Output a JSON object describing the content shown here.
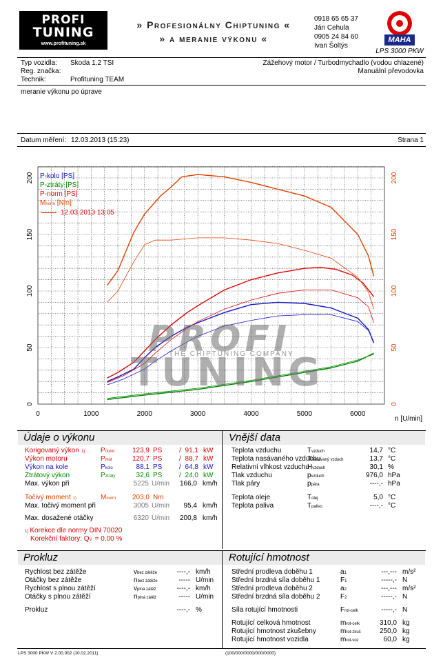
{
  "header": {
    "tagline_1": "» Profesionálny Chiptuning «",
    "tagline_2": "» a meranie výkonu «",
    "logo_url": "www.profituning.sk",
    "contacts": [
      "0918 65 65 37",
      "Ján Cehula",
      "0905 24 84 60",
      "Ivan Šoltýs"
    ],
    "device": "LPS 3000 PKW",
    "maha_brand": "MAHA"
  },
  "vehicle": {
    "type_label": "Typ vozidla:",
    "type_value": "Skoda 1.2 TSI",
    "reg_label": "Reg. značka:",
    "reg_value": "",
    "tech_label": "Technik:",
    "tech_value": "Profituning TEAM",
    "engine_desc": "Zážehový motor / Turbodmychadlo (vodou chlazené)",
    "gearbox": "Manuální převodovka"
  },
  "comment": "meranie výkonu po úprave",
  "measure": {
    "date_label": "Datum měření:",
    "date_value": "12.03.2013 (15:23)",
    "page": "Strana 1"
  },
  "chart_data": {
    "type": "line",
    "xlabel": "n [U/min]",
    "xlim": [
      0,
      6500
    ],
    "ylim": [
      0,
      200
    ],
    "x_ticks": [
      0,
      1000,
      2000,
      3000,
      4000,
      5000,
      6000
    ],
    "y_ticks": [
      0,
      50,
      100,
      150,
      200
    ],
    "legend": [
      {
        "text": "P-kolo [PS]",
        "color": "#1515c8"
      },
      {
        "text": "P-ztráty [PS]",
        "color": "#008800"
      },
      {
        "text": "P-norm [PS]",
        "color": "#e00000"
      },
      {
        "text": "M",
        "sub": "norm",
        "tail": " [Nm]",
        "color": "#e04000"
      },
      {
        "text": "12.03.2013 13:05",
        "color": "#e00000"
      }
    ],
    "series": [
      {
        "name": "P-kolo [PS]",
        "color": "#1515c8",
        "width": 1.4,
        "points": [
          [
            1300,
            20
          ],
          [
            1500,
            24
          ],
          [
            1800,
            31
          ],
          [
            2000,
            41
          ],
          [
            2200,
            50
          ],
          [
            2500,
            60
          ],
          [
            2800,
            68
          ],
          [
            3000,
            72
          ],
          [
            3500,
            81
          ],
          [
            4000,
            88
          ],
          [
            4500,
            90
          ],
          [
            5000,
            89
          ],
          [
            5500,
            85
          ],
          [
            6000,
            76
          ],
          [
            6200,
            66
          ],
          [
            6300,
            54
          ]
        ]
      },
      {
        "name": "P-kolo (12.03.2013 13:05)",
        "color": "#1515c8",
        "width": 0.8,
        "points": [
          [
            1300,
            17
          ],
          [
            1600,
            22
          ],
          [
            2000,
            31
          ],
          [
            2200,
            38
          ],
          [
            2500,
            47
          ],
          [
            2800,
            55
          ],
          [
            3000,
            60
          ],
          [
            3500,
            69
          ],
          [
            4000,
            74
          ],
          [
            4500,
            78
          ],
          [
            5000,
            79
          ],
          [
            5500,
            79
          ],
          [
            6000,
            73
          ],
          [
            6200,
            65
          ],
          [
            6300,
            55
          ]
        ]
      },
      {
        "name": "P-ztráty [PS]",
        "color": "#008800",
        "width": 1.4,
        "points": [
          [
            1300,
            4
          ],
          [
            2000,
            8
          ],
          [
            3000,
            13
          ],
          [
            4000,
            20
          ],
          [
            5000,
            28
          ],
          [
            5500,
            32
          ],
          [
            6000,
            38
          ],
          [
            6300,
            45
          ]
        ]
      },
      {
        "name": "P-ztráty (12.03.2013 13:05)",
        "color": "#008800",
        "width": 0.8,
        "points": [
          [
            1300,
            5
          ],
          [
            2000,
            9
          ],
          [
            3000,
            14
          ],
          [
            4000,
            21
          ],
          [
            5000,
            29
          ],
          [
            5500,
            33
          ],
          [
            6000,
            39
          ],
          [
            6300,
            44
          ]
        ]
      },
      {
        "name": "P-norm [PS]",
        "color": "#e00000",
        "width": 1.4,
        "points": [
          [
            1300,
            23
          ],
          [
            1500,
            28
          ],
          [
            1800,
            37
          ],
          [
            2000,
            47
          ],
          [
            2200,
            57
          ],
          [
            2500,
            70
          ],
          [
            2800,
            81
          ],
          [
            3000,
            87
          ],
          [
            3500,
            101
          ],
          [
            4000,
            110
          ],
          [
            4500,
            116
          ],
          [
            5000,
            120
          ],
          [
            5300,
            121
          ],
          [
            5600,
            119
          ],
          [
            5900,
            114
          ],
          [
            6100,
            107
          ],
          [
            6300,
            95
          ]
        ]
      },
      {
        "name": "P-norm (12.03.2013 13:05)",
        "color": "#e00000",
        "width": 0.8,
        "points": [
          [
            1300,
            19
          ],
          [
            1600,
            25
          ],
          [
            2000,
            36
          ],
          [
            2200,
            45
          ],
          [
            2500,
            57
          ],
          [
            2800,
            67
          ],
          [
            3000,
            73
          ],
          [
            3500,
            84
          ],
          [
            4000,
            92
          ],
          [
            4500,
            98
          ],
          [
            5000,
            101
          ],
          [
            5500,
            101
          ],
          [
            6000,
            94
          ],
          [
            6200,
            86
          ],
          [
            6300,
            72
          ]
        ]
      },
      {
        "name": "M-norm [Nm]",
        "color": "#e04000",
        "width": 1.4,
        "points": [
          [
            1300,
            105
          ],
          [
            1500,
            118
          ],
          [
            1800,
            152
          ],
          [
            2000,
            168
          ],
          [
            2300,
            184
          ],
          [
            2500,
            192
          ],
          [
            2700,
            201
          ],
          [
            3000,
            203
          ],
          [
            3500,
            201
          ],
          [
            4000,
            196
          ],
          [
            4500,
            190
          ],
          [
            5000,
            184
          ],
          [
            5500,
            174
          ],
          [
            6000,
            150
          ],
          [
            6200,
            131
          ],
          [
            6300,
            113
          ]
        ]
      },
      {
        "name": "M-norm (12.03.2013 13:05)",
        "color": "#e04000",
        "width": 0.8,
        "points": [
          [
            1300,
            90
          ],
          [
            1500,
            100
          ],
          [
            1800,
            126
          ],
          [
            2000,
            141
          ],
          [
            2200,
            145
          ],
          [
            2500,
            145
          ],
          [
            3000,
            147
          ],
          [
            3500,
            147
          ],
          [
            4000,
            145
          ],
          [
            4500,
            142
          ],
          [
            5000,
            136
          ],
          [
            5500,
            129
          ],
          [
            6000,
            112
          ],
          [
            6200,
            99
          ],
          [
            6300,
            84
          ]
        ]
      }
    ]
  },
  "watermark": {
    "line1": "PROFI",
    "line2": "TUNING",
    "tag": "THE CHIPTUNING COMPANY"
  },
  "perf": {
    "title": "Údaje o výkonu",
    "rows": [
      {
        "label": "Korigovaný výkon",
        "ref": "1)",
        "sym": "P",
        "sub": "norm",
        "v1": "123,9",
        "u1": "PS",
        "sep": "/",
        "v2": "91,1",
        "u2": "kW",
        "cls": "red"
      },
      {
        "label": "Výkon motoru",
        "sym": "P",
        "sub": "mot",
        "v1": "120,7",
        "u1": "PS",
        "sep": "/",
        "v2": "88,7",
        "u2": "kW",
        "cls": "red"
      },
      {
        "label": "Výkon na kole",
        "sym": "P",
        "sub": "kolo",
        "v1": "88,1",
        "u1": "PS",
        "sep": "/",
        "v2": "64,8",
        "u2": "kW",
        "cls": "blue"
      },
      {
        "label": "Ztrátový výkon",
        "sym": "P",
        "sub": "ztráty",
        "v1": "32,6",
        "u1": "PS",
        "sep": "/",
        "v2": "24,0",
        "u2": "kW",
        "cls": "green"
      }
    ],
    "maxpow": {
      "label": "Max. výkon při",
      "v1": "5225",
      "u1": "U/min",
      "v2": "166,0",
      "u2": "km/h"
    },
    "torque": {
      "label": "Točivý moment",
      "ref": "1)",
      "sym": "M",
      "sub": "norm",
      "v1": "203,0",
      "u1": "Nm"
    },
    "maxtq": {
      "label": "Max. točivý moment při",
      "v1": "3005",
      "u1": "U/min",
      "v2": "95,4",
      "u2": "km/h"
    },
    "maxrpm": {
      "label": "Max. dosažené otáčky",
      "v1": "6320",
      "u1": "U/min",
      "v2": "200,8",
      "u2": "km/h"
    },
    "note1_ref": "1)",
    "note1": "Korekce dle normy DIN 70020",
    "note2": "Korekční faktory: Q",
    "note2_sub": "V",
    "note2_val": "= 0,00 %"
  },
  "ext": {
    "title": "Vnější data",
    "rows": [
      {
        "label": "Teplota vzduchu",
        "sym": "T",
        "sub": "vzduch",
        "val": "14,7",
        "unit": "°C"
      },
      {
        "label": "Teplota nasávaného vzduchu",
        "sym": "T",
        "sub": "nasávaný vzduch",
        "val": "13,7",
        "unit": "°C"
      },
      {
        "label": "Relativní vlhkost vzduchu",
        "sym": "H",
        "sub": "vzduch",
        "val": "30,1",
        "unit": "%"
      },
      {
        "label": "Tlak vzduchu",
        "sym": "p",
        "sub": "vzduch",
        "val": "976,0",
        "unit": "hPa"
      },
      {
        "label": "Tlak páry",
        "sym": "p",
        "sub": "pára",
        "val": "----,-",
        "unit": "hPa"
      },
      {
        "label": "Teplota oleje",
        "sym": "T",
        "sub": "olej",
        "val": "5,0",
        "unit": "°C"
      },
      {
        "label": "Teplota paliva",
        "sym": "T",
        "sub": "palivo",
        "val": "----,-",
        "unit": "°C"
      }
    ]
  },
  "prokluz": {
    "title": "Prokluz",
    "rows": [
      {
        "label": "Rychlost bez zátěže",
        "sym": "v",
        "sub": "bez zátěže",
        "val": "----,-",
        "unit": "km/h"
      },
      {
        "label": "Otáčky bez zátěže",
        "sym": "n",
        "sub": "bez zátěže",
        "val": "-----",
        "unit": "U/min"
      },
      {
        "label": "Rychlost s plnou zátěží",
        "sym": "v",
        "sub": "plná zátěž",
        "val": "----,-",
        "unit": "km/h"
      },
      {
        "label": "Otáčky s plnou zátěží",
        "sym": "n",
        "sub": "plná zátěž",
        "val": "-----",
        "unit": "U/min"
      },
      {
        "label": "Prokluz",
        "sym": "",
        "sub": "",
        "val": "----,-",
        "unit": "%"
      }
    ]
  },
  "rot": {
    "title": "Rotující hmotnost",
    "rows": [
      {
        "label": "Střední prodleva doběhu 1",
        "sym": "a",
        "sub": "1",
        "val": "---,---",
        "unit": "m/s²"
      },
      {
        "label": "Střední brzdná síla doběhu 1",
        "sym": "F",
        "sub": "1",
        "val": "-----,-",
        "unit": "N"
      },
      {
        "label": "Střední prodleva doběhu 2",
        "sym": "a",
        "sub": "2",
        "val": "---,---",
        "unit": "m/s²"
      },
      {
        "label": "Střední brzdná síla doběhu 2",
        "sym": "F",
        "sub": "2",
        "val": "-----,-",
        "unit": "N"
      },
      {
        "label": "Síla rotující hmotnosti",
        "sym": "F",
        "sub": "rot-celk",
        "val": "-----,-",
        "unit": "N"
      },
      {
        "label": "Rotující celková hmotnost",
        "sym": "m",
        "sub": "rot-celk",
        "val": "310,0",
        "unit": "kg"
      },
      {
        "label": "Rotující hmotnost zkušebny",
        "sym": "m",
        "sub": "rot-zkuš",
        "val": "250,0",
        "unit": "kg"
      },
      {
        "label": "Rotující hmotnost vozidla",
        "sym": "m",
        "sub": "rot-voz",
        "val": "60,0",
        "unit": "kg"
      }
    ]
  },
  "footer": {
    "left": "LPS 3000 PKW V 2.00.002 (10.02.2011)",
    "mid": "(100/000/0000/000/0000)"
  }
}
